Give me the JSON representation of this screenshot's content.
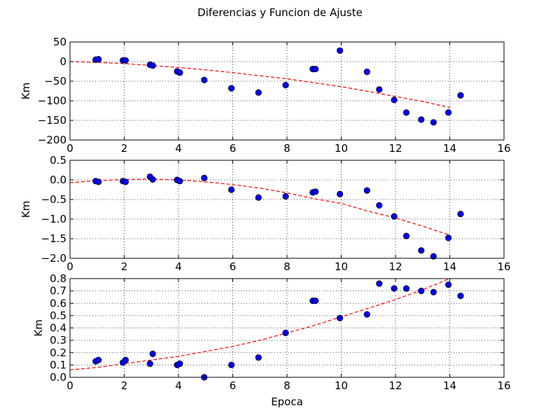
{
  "figure": {
    "title": "Diferencias y Funcion de Ajuste"
  },
  "chart_data": [
    {
      "type": "scatter",
      "name": "panel-1",
      "title": "",
      "xlabel": "",
      "ylabel": "Km",
      "xlim": [
        0,
        16
      ],
      "ylim": [
        -200,
        50
      ],
      "xticks": [
        "0",
        "2",
        "4",
        "6",
        "8",
        "10",
        "12",
        "14",
        "16"
      ],
      "xtick_values": [
        0,
        2,
        4,
        6,
        8,
        10,
        12,
        14,
        16
      ],
      "yticks": [
        "−200",
        "−150",
        "−100",
        "−50",
        "0",
        "50"
      ],
      "ytick_values": [
        -200,
        -150,
        -100,
        -50,
        0,
        50
      ],
      "grid": true,
      "points_color": "#0000ff",
      "fit_color": "#ff0000",
      "points": {
        "x": [
          0.95,
          1.05,
          1.95,
          2.05,
          2.95,
          3.05,
          3.95,
          4.05,
          4.95,
          5.95,
          6.95,
          7.95,
          8.95,
          9.05,
          9.95,
          10.95,
          11.4,
          11.95,
          12.4,
          12.95,
          13.4,
          13.95,
          14.4
        ],
        "y": [
          5,
          6,
          3,
          3,
          -8,
          -10,
          -25,
          -28,
          -47,
          -68,
          -79,
          -60,
          -19,
          -19,
          28,
          -26,
          -71,
          -98,
          -130,
          -148,
          -155,
          -130,
          -86
        ]
      },
      "fit": {
        "x": [
          0,
          1,
          2,
          3,
          4,
          5,
          6,
          7,
          8,
          9,
          10,
          11,
          12,
          13,
          14
        ],
        "y": [
          0,
          -2,
          -5,
          -10,
          -15,
          -21,
          -28,
          -36,
          -44,
          -54,
          -64,
          -76,
          -89,
          -102,
          -117
        ]
      }
    },
    {
      "type": "scatter",
      "name": "panel-2",
      "title": "",
      "xlabel": "",
      "ylabel": "Km",
      "xlim": [
        0,
        16
      ],
      "ylim": [
        -2.0,
        0.5
      ],
      "xticks": [
        "0",
        "2",
        "4",
        "6",
        "8",
        "10",
        "12",
        "14",
        "16"
      ],
      "xtick_values": [
        0,
        2,
        4,
        6,
        8,
        10,
        12,
        14,
        16
      ],
      "yticks": [
        "−2.0",
        "−1.5",
        "−1.0",
        "−0.5",
        "0.0",
        "0.5"
      ],
      "ytick_values": [
        -2.0,
        -1.5,
        -1.0,
        -0.5,
        0.0,
        0.5
      ],
      "grid": true,
      "points_color": "#0000ff",
      "fit_color": "#ff0000",
      "points": {
        "x": [
          0.95,
          1.05,
          1.95,
          2.05,
          2.95,
          3.05,
          3.95,
          4.05,
          4.95,
          5.95,
          6.95,
          7.95,
          8.95,
          9.05,
          9.95,
          10.95,
          11.4,
          11.95,
          12.4,
          12.95,
          13.4,
          13.95,
          14.4
        ],
        "y": [
          -0.03,
          -0.05,
          -0.03,
          -0.05,
          0.08,
          0.01,
          0.0,
          -0.03,
          0.05,
          -0.25,
          -0.45,
          -0.42,
          -0.32,
          -0.3,
          -0.36,
          -0.27,
          -0.65,
          -0.93,
          -1.43,
          -1.8,
          -1.95,
          -1.48,
          -0.87
        ]
      },
      "fit": {
        "x": [
          0,
          1,
          2,
          3,
          4,
          5,
          6,
          7,
          8,
          9,
          10,
          11,
          12,
          13,
          14
        ],
        "y": [
          -0.07,
          -0.02,
          0.01,
          0.02,
          0.0,
          -0.05,
          -0.12,
          -0.21,
          -0.33,
          -0.48,
          -0.6,
          -0.8,
          -0.97,
          -1.18,
          -1.41
        ]
      }
    },
    {
      "type": "scatter",
      "name": "panel-3",
      "title": "",
      "xlabel": "Epoca",
      "ylabel": "Km",
      "xlim": [
        0,
        16
      ],
      "ylim": [
        0.0,
        0.8
      ],
      "xticks": [
        "0",
        "2",
        "4",
        "6",
        "8",
        "10",
        "12",
        "14",
        "16"
      ],
      "xtick_values": [
        0,
        2,
        4,
        6,
        8,
        10,
        12,
        14,
        16
      ],
      "yticks": [
        "0.0",
        "0.1",
        "0.2",
        "0.3",
        "0.4",
        "0.5",
        "0.6",
        "0.7",
        "0.8"
      ],
      "ytick_values": [
        0.0,
        0.1,
        0.2,
        0.3,
        0.4,
        0.5,
        0.6,
        0.7,
        0.8
      ],
      "grid": true,
      "points_color": "#0000ff",
      "fit_color": "#ff0000",
      "points": {
        "x": [
          0.95,
          1.05,
          1.95,
          2.05,
          2.95,
          3.05,
          3.95,
          4.05,
          4.95,
          5.95,
          6.95,
          7.95,
          8.95,
          9.05,
          9.95,
          10.95,
          11.4,
          11.95,
          12.4,
          12.95,
          13.4,
          13.95,
          14.4
        ],
        "y": [
          0.13,
          0.14,
          0.12,
          0.14,
          0.11,
          0.19,
          0.1,
          0.11,
          0.0,
          0.1,
          0.16,
          0.36,
          0.62,
          0.62,
          0.48,
          0.51,
          0.76,
          0.72,
          0.72,
          0.7,
          0.69,
          0.75,
          0.66
        ]
      },
      "fit": {
        "x": [
          0,
          1,
          2,
          3,
          4,
          5,
          6,
          7,
          8,
          9,
          10,
          11,
          12,
          13,
          14
        ],
        "y": [
          0.06,
          0.08,
          0.11,
          0.14,
          0.17,
          0.21,
          0.25,
          0.3,
          0.36,
          0.42,
          0.49,
          0.56,
          0.63,
          0.71,
          0.8
        ]
      }
    }
  ]
}
